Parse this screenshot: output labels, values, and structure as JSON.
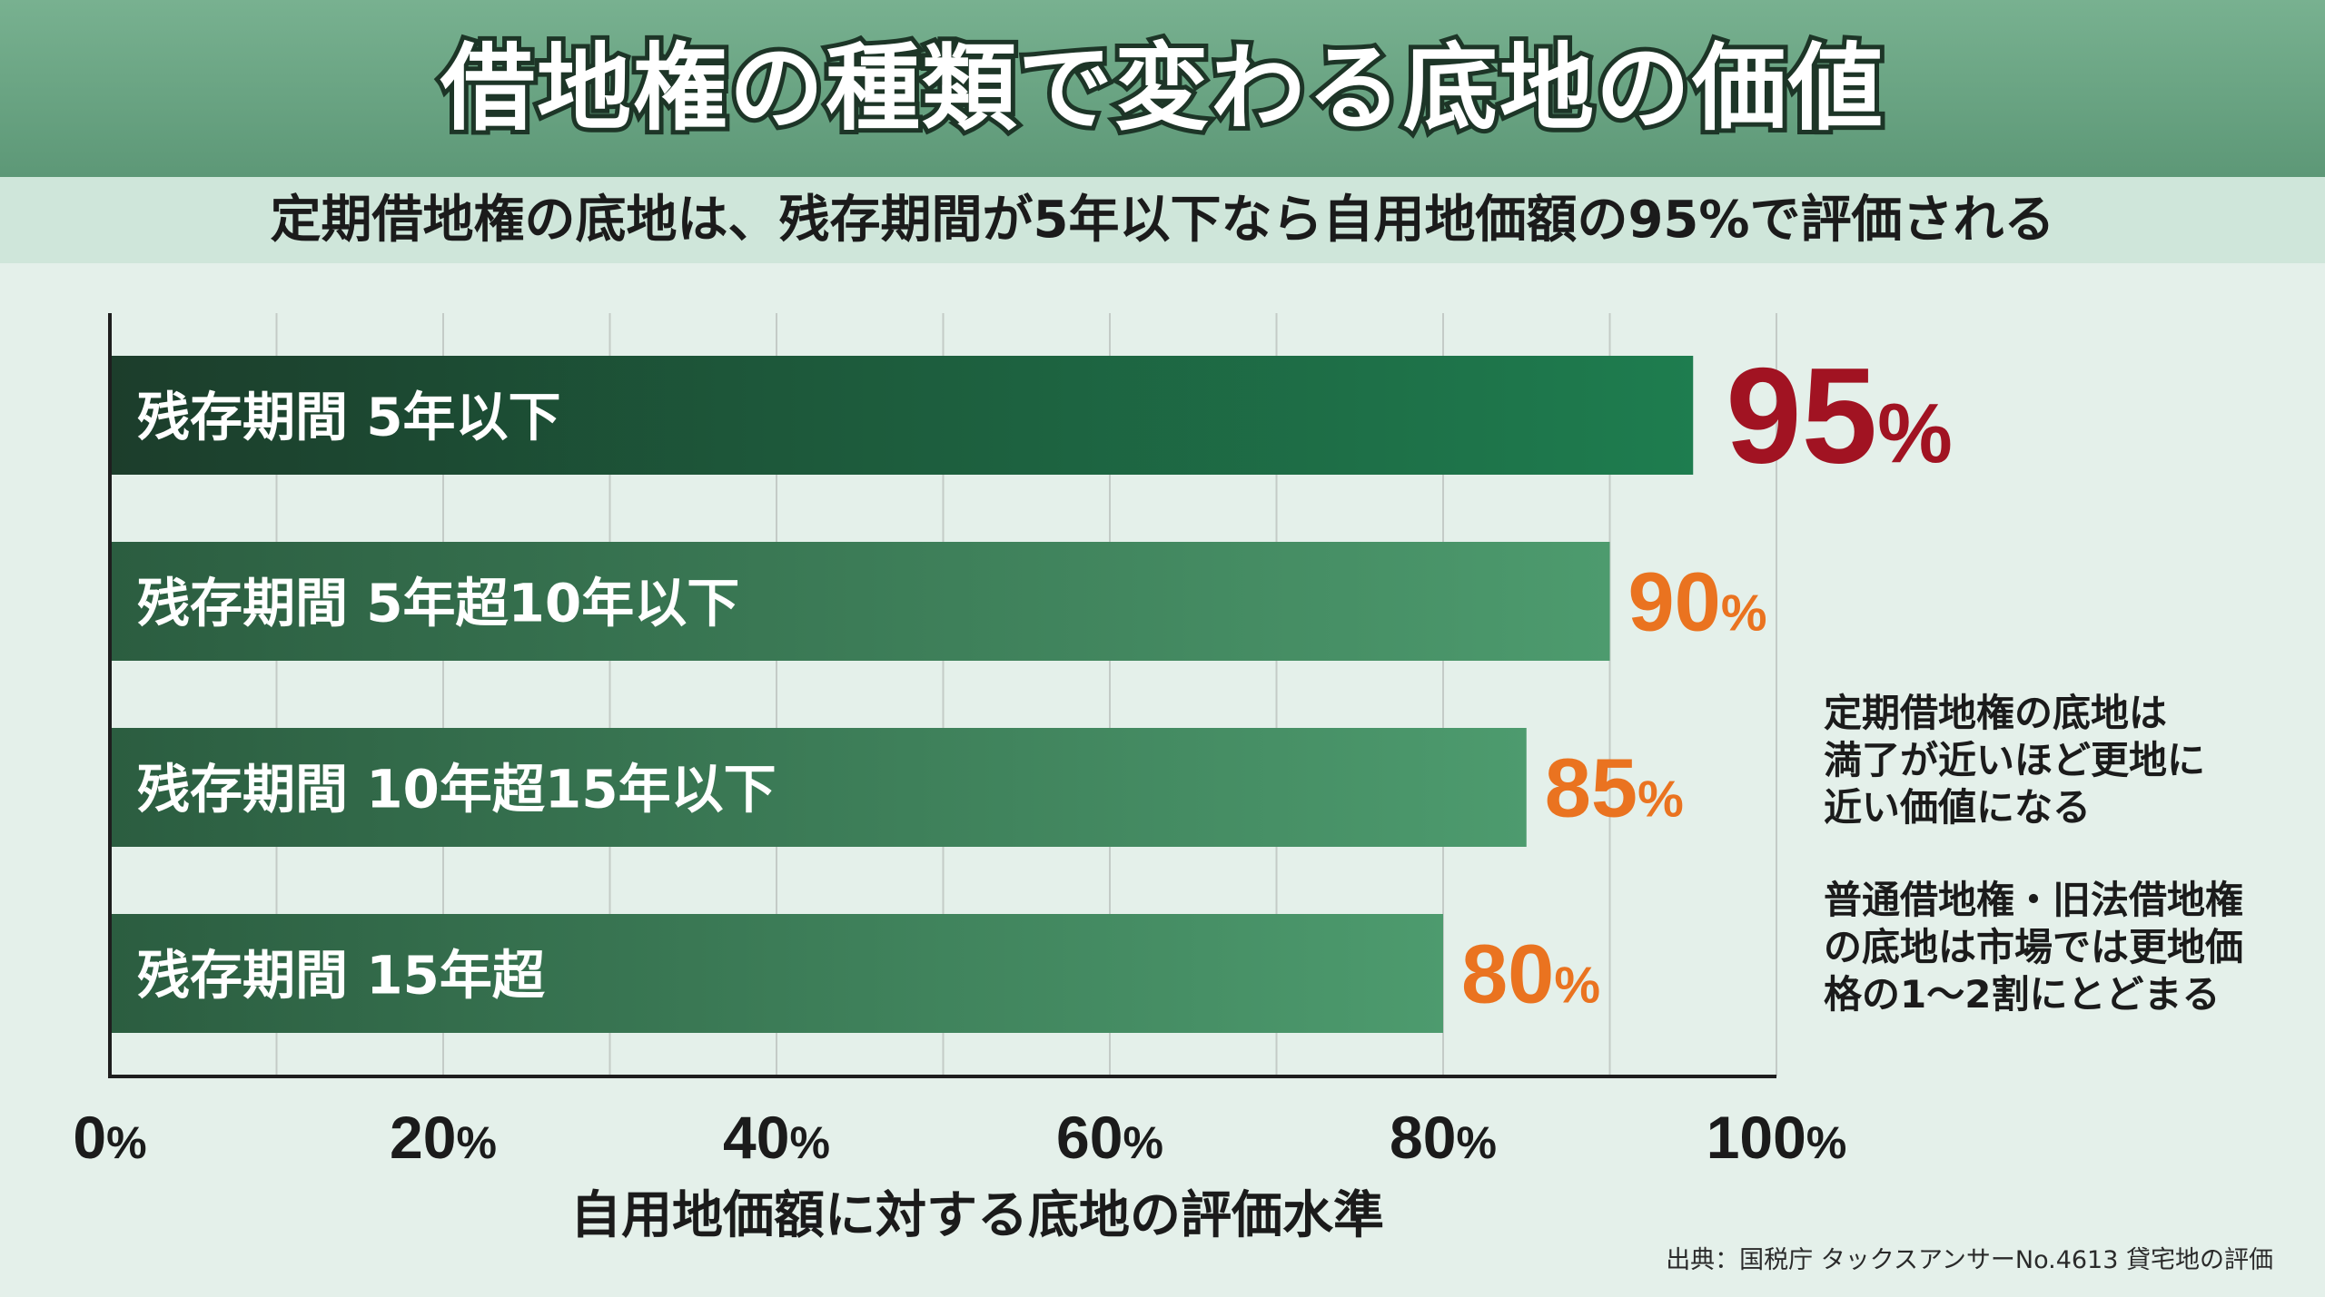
{
  "title": "借地権の種類で変わる底地の価値",
  "subtitle": "定期借地権の底地は、残存期間が5年以下なら自用地価額の95%で評価される",
  "chart_data": {
    "type": "bar",
    "orientation": "horizontal",
    "categories": [
      "残存期間 5年以下",
      "残存期間 5年超10年以下",
      "残存期間 10年超15年以下",
      "残存期間 15年超"
    ],
    "values": [
      95,
      90,
      85,
      80
    ],
    "value_labels": [
      "95%",
      "90%",
      "85%",
      "80%"
    ],
    "xlabel": "自用地価額に対する底地の評価水準",
    "xlim": [
      0,
      100
    ],
    "xticks": [
      0,
      20,
      40,
      60,
      80,
      100
    ],
    "xtick_labels": [
      "0%",
      "20%",
      "40%",
      "60%",
      "80%",
      "100%"
    ],
    "grid": true,
    "colors": {
      "highlight_bar": "#1d7a4d",
      "bar": "#3f9468",
      "highlight_label": "#a11322",
      "label": "#ea7320"
    }
  },
  "notes": [
    "定期借地権の底地は\n満了が近いほど更地に\n近い価値になる",
    "普通借地権・旧法借地権\nの底地は市場では更地価\n格の1～2割にとどまる"
  ],
  "source": "出典：国税庁 タックスアンサーNo.4613 貸宅地の評価"
}
